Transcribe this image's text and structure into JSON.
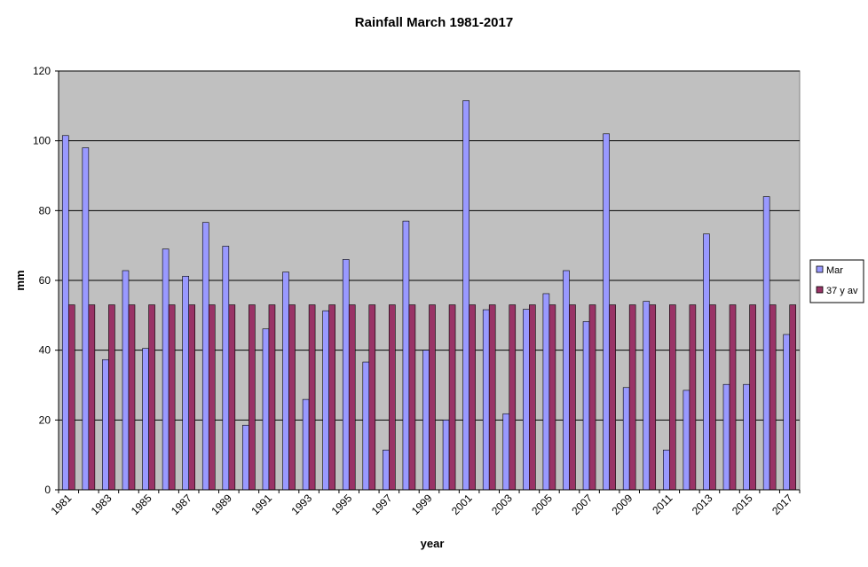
{
  "chart_data": {
    "type": "bar",
    "title": "Rainfall March 1981-2017",
    "xlabel": "year",
    "ylabel": "mm",
    "ylim": [
      0,
      120
    ],
    "yticks": [
      0,
      20,
      40,
      60,
      80,
      100,
      120
    ],
    "grid": true,
    "legend_position": "right",
    "plot_background": "#c0c0c0",
    "categories": [
      "1981",
      "1982",
      "1983",
      "1984",
      "1985",
      "1986",
      "1987",
      "1988",
      "1989",
      "1990",
      "1991",
      "1992",
      "1993",
      "1994",
      "1995",
      "1996",
      "1997",
      "1998",
      "1999",
      "2000",
      "2001",
      "2002",
      "2003",
      "2004",
      "2005",
      "2006",
      "2007",
      "2008",
      "2009",
      "2010",
      "2011",
      "2012",
      "2013",
      "2014",
      "2015",
      "2016",
      "2017"
    ],
    "xtick_labels": [
      "1981",
      "1983",
      "1985",
      "1987",
      "1989",
      "1991",
      "1993",
      "1995",
      "1997",
      "1999",
      "2001",
      "2003",
      "2005",
      "2007",
      "2009",
      "2011",
      "2013",
      "2015",
      "2017"
    ],
    "series": [
      {
        "name": "Mar",
        "color": "#9999ff",
        "values": [
          101.5,
          98,
          37.3,
          62.8,
          40.5,
          69,
          61.2,
          76.6,
          69.8,
          18.5,
          46.1,
          62.4,
          25.9,
          51.3,
          66,
          36.6,
          11.4,
          77,
          40,
          20,
          111.5,
          51.6,
          21.8,
          51.7,
          56.2,
          62.8,
          48.2,
          102,
          29.3,
          54,
          11.4,
          28.5,
          73.3,
          30.2,
          30.2,
          84,
          44.5
        ]
      },
      {
        "name": "37 y av",
        "color": "#993366",
        "values": [
          53,
          53,
          53,
          53,
          53,
          53,
          53,
          53,
          53,
          53,
          53,
          53,
          53,
          53,
          53,
          53,
          53,
          53,
          53,
          53,
          53,
          53,
          53,
          53,
          53,
          53,
          53,
          53,
          53,
          53,
          53,
          53,
          53,
          53,
          53,
          53,
          53
        ]
      }
    ]
  }
}
